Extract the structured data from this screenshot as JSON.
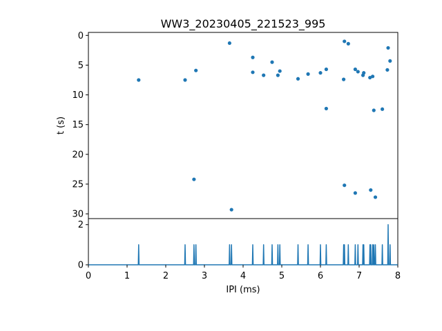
{
  "chart_data": [
    {
      "type": "scatter",
      "title": "WW3_20230405_221523_995",
      "xlabel": "",
      "ylabel": "t (s)",
      "xlim": [
        0,
        8
      ],
      "ylim": [
        30.8,
        -0.5
      ],
      "y_inverted": true,
      "yticks": [
        0,
        5,
        10,
        15,
        20,
        25,
        30
      ],
      "color": "#1f77b4",
      "points": [
        {
          "x": 1.3,
          "y": 7.5
        },
        {
          "x": 2.5,
          "y": 7.5
        },
        {
          "x": 2.78,
          "y": 5.9
        },
        {
          "x": 2.73,
          "y": 24.2
        },
        {
          "x": 3.65,
          "y": 1.3
        },
        {
          "x": 3.7,
          "y": 29.3
        },
        {
          "x": 4.25,
          "y": 3.7
        },
        {
          "x": 4.25,
          "y": 6.2
        },
        {
          "x": 4.53,
          "y": 6.7
        },
        {
          "x": 4.75,
          "y": 4.5
        },
        {
          "x": 4.9,
          "y": 6.7
        },
        {
          "x": 4.95,
          "y": 6.0
        },
        {
          "x": 5.42,
          "y": 7.3
        },
        {
          "x": 5.68,
          "y": 6.5
        },
        {
          "x": 6.0,
          "y": 6.3
        },
        {
          "x": 6.15,
          "y": 5.7
        },
        {
          "x": 6.15,
          "y": 12.3
        },
        {
          "x": 6.6,
          "y": 7.4
        },
        {
          "x": 6.62,
          "y": 1.0
        },
        {
          "x": 6.62,
          "y": 25.2
        },
        {
          "x": 6.72,
          "y": 1.4
        },
        {
          "x": 6.9,
          "y": 5.7
        },
        {
          "x": 6.9,
          "y": 26.5
        },
        {
          "x": 6.97,
          "y": 6.1
        },
        {
          "x": 7.1,
          "y": 6.7
        },
        {
          "x": 7.12,
          "y": 6.3
        },
        {
          "x": 7.28,
          "y": 7.1
        },
        {
          "x": 7.3,
          "y": 26.0
        },
        {
          "x": 7.35,
          "y": 6.9
        },
        {
          "x": 7.38,
          "y": 12.6
        },
        {
          "x": 7.42,
          "y": 27.2
        },
        {
          "x": 7.6,
          "y": 12.4
        },
        {
          "x": 7.73,
          "y": 5.8
        },
        {
          "x": 7.75,
          "y": 2.1
        },
        {
          "x": 7.8,
          "y": 4.3
        }
      ]
    },
    {
      "type": "line",
      "title": "",
      "xlabel": "IPI (ms)",
      "ylabel": "",
      "xlim": [
        0,
        8
      ],
      "ylim": [
        0,
        2.3
      ],
      "xticks": [
        0,
        1,
        2,
        3,
        4,
        5,
        6,
        7,
        8
      ],
      "yticks": [
        0,
        2
      ],
      "color": "#1f77b4",
      "spikes": [
        {
          "x": 1.3,
          "y": 1
        },
        {
          "x": 2.5,
          "y": 1
        },
        {
          "x": 2.73,
          "y": 1
        },
        {
          "x": 2.78,
          "y": 1
        },
        {
          "x": 3.65,
          "y": 1
        },
        {
          "x": 3.7,
          "y": 1
        },
        {
          "x": 4.25,
          "y": 1
        },
        {
          "x": 4.53,
          "y": 1
        },
        {
          "x": 4.75,
          "y": 1
        },
        {
          "x": 4.9,
          "y": 1
        },
        {
          "x": 4.95,
          "y": 1
        },
        {
          "x": 5.42,
          "y": 1
        },
        {
          "x": 5.68,
          "y": 1
        },
        {
          "x": 6.0,
          "y": 1
        },
        {
          "x": 6.15,
          "y": 1
        },
        {
          "x": 6.6,
          "y": 1
        },
        {
          "x": 6.62,
          "y": 1
        },
        {
          "x": 6.72,
          "y": 1
        },
        {
          "x": 6.9,
          "y": 1
        },
        {
          "x": 6.97,
          "y": 1
        },
        {
          "x": 7.1,
          "y": 1
        },
        {
          "x": 7.12,
          "y": 1
        },
        {
          "x": 7.28,
          "y": 1
        },
        {
          "x": 7.3,
          "y": 1
        },
        {
          "x": 7.35,
          "y": 1
        },
        {
          "x": 7.38,
          "y": 1
        },
        {
          "x": 7.42,
          "y": 1
        },
        {
          "x": 7.6,
          "y": 1
        },
        {
          "x": 7.75,
          "y": 2
        },
        {
          "x": 7.8,
          "y": 1
        }
      ]
    }
  ]
}
